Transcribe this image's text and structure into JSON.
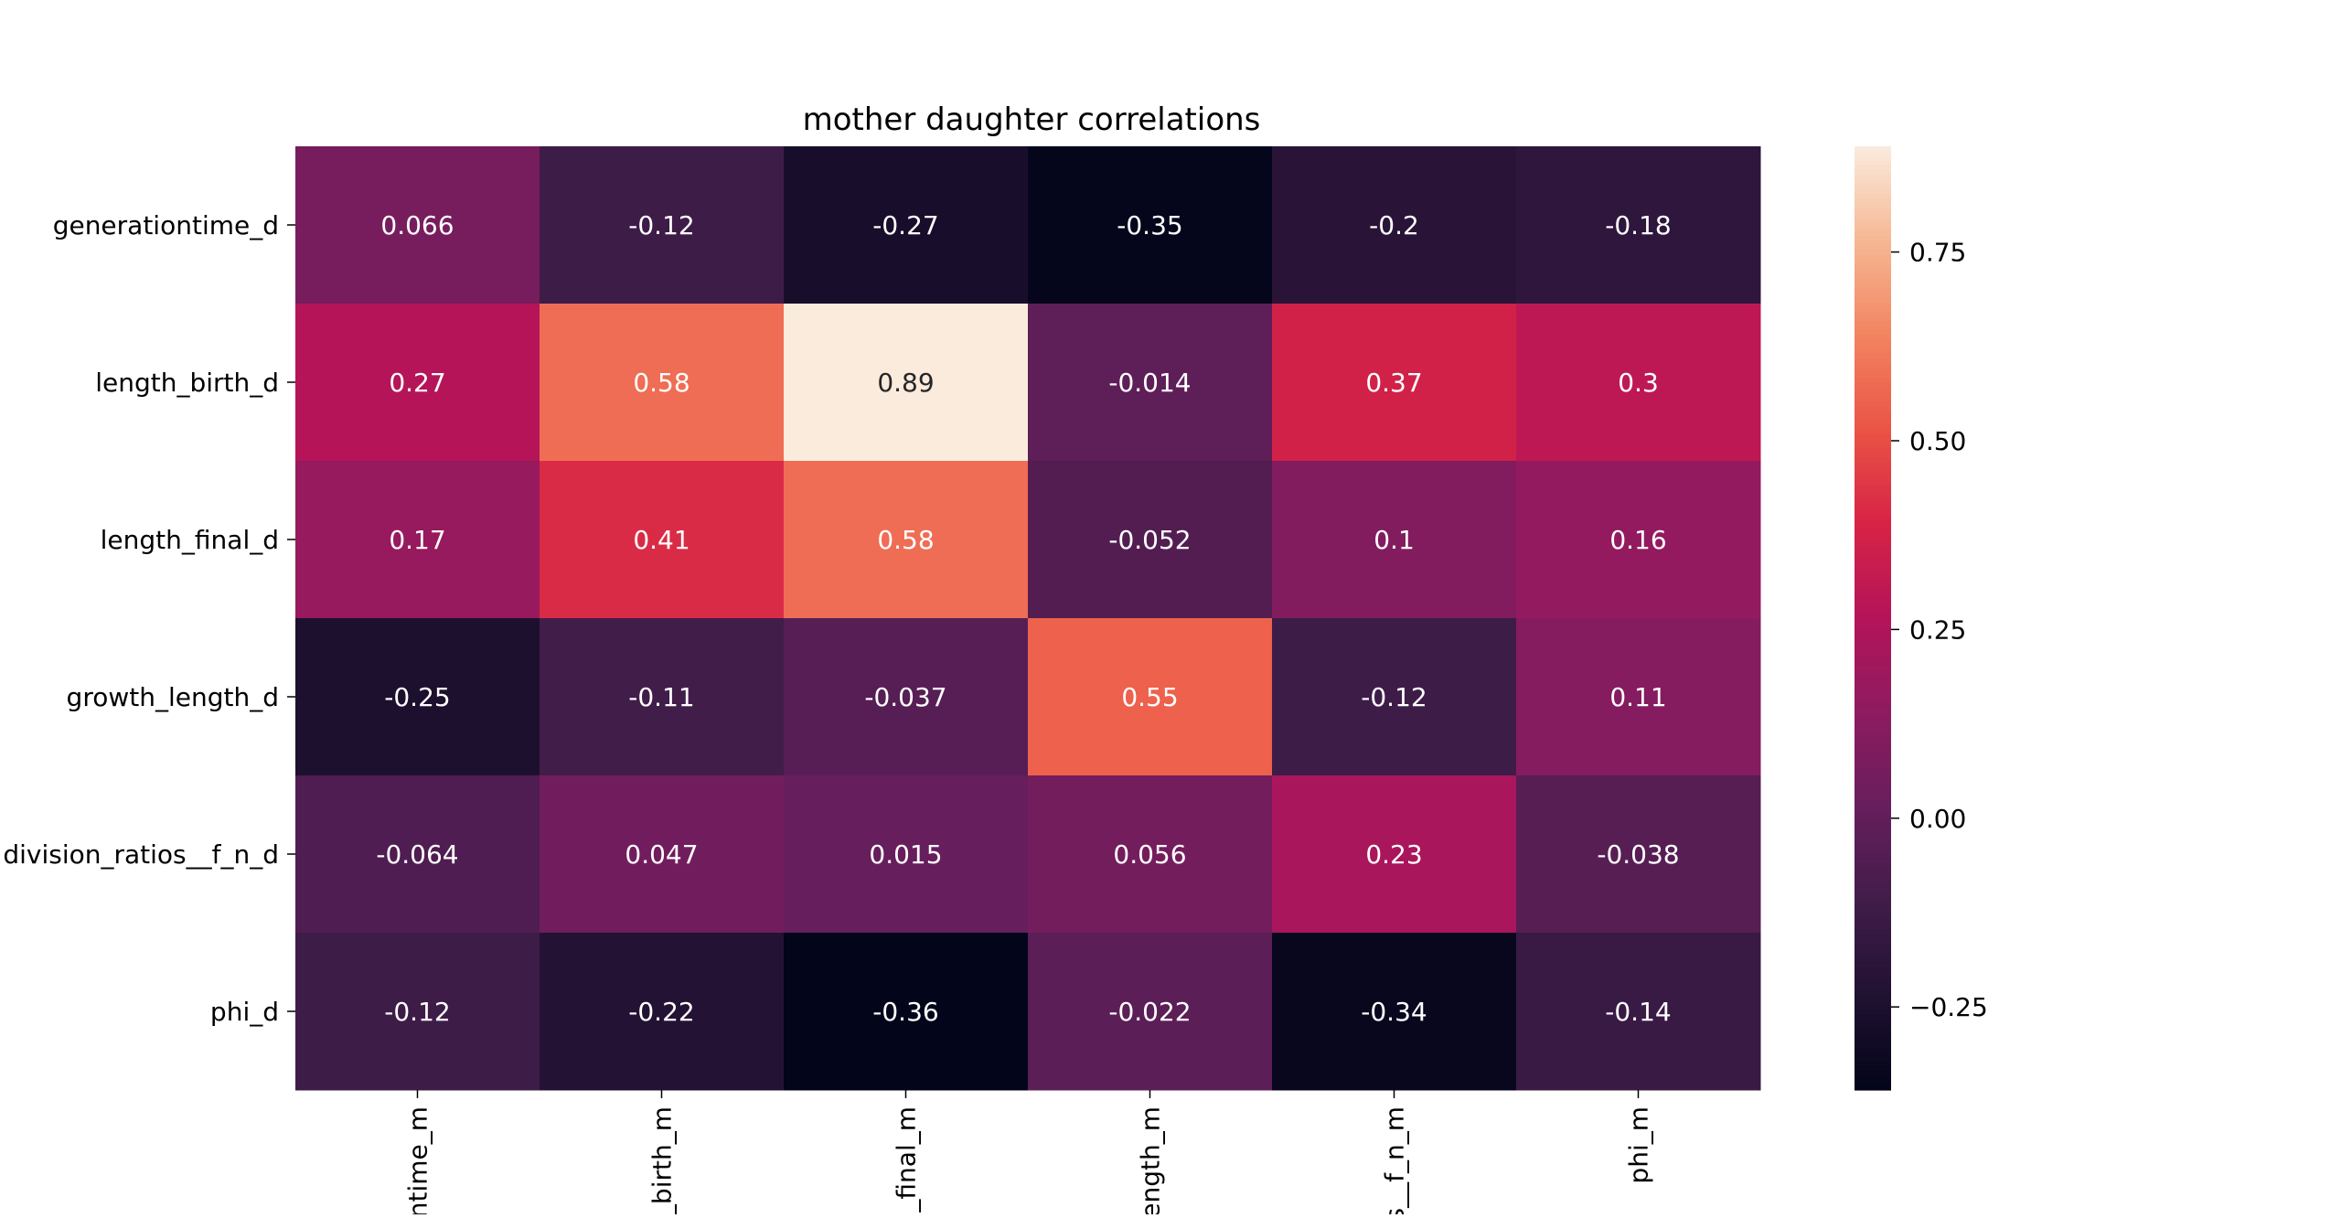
{
  "chart_data": {
    "type": "heatmap",
    "title": "mother daughter correlations",
    "rows": [
      "generationtime_d",
      "length_birth_d",
      "length_final_d",
      "growth_length_d",
      "division_ratios__f_n_d",
      "phi_d"
    ],
    "columns": [
      "generationtime_m",
      "length_birth_m",
      "length_final_m",
      "growth_length_m",
      "division_ratios__f_n_m",
      "phi_m"
    ],
    "column_labels_visible": [
      "ntime_m",
      "_birth_m",
      "n_final_m",
      "ength_m",
      "s__f_n_m",
      "phi_m"
    ],
    "values": [
      [
        0.066,
        -0.12,
        -0.27,
        -0.35,
        -0.2,
        -0.18
      ],
      [
        0.27,
        0.58,
        0.89,
        -0.014,
        0.37,
        0.3
      ],
      [
        0.17,
        0.41,
        0.58,
        -0.052,
        0.1,
        0.16
      ],
      [
        -0.25,
        -0.11,
        -0.037,
        0.55,
        -0.12,
        0.11
      ],
      [
        -0.064,
        0.047,
        0.015,
        0.056,
        0.23,
        -0.038
      ],
      [
        -0.12,
        -0.22,
        -0.36,
        -0.022,
        -0.34,
        -0.14
      ]
    ],
    "value_labels": [
      [
        "0.066",
        "-0.12",
        "-0.27",
        "-0.35",
        "-0.2",
        "-0.18"
      ],
      [
        "0.27",
        "0.58",
        "0.89",
        "-0.014",
        "0.37",
        "0.3"
      ],
      [
        "0.17",
        "0.41",
        "0.58",
        "-0.052",
        "0.1",
        "0.16"
      ],
      [
        "-0.25",
        "-0.11",
        "-0.037",
        "0.55",
        "-0.12",
        "0.11"
      ],
      [
        "-0.064",
        "0.047",
        "0.015",
        "0.056",
        "0.23",
        "-0.038"
      ],
      [
        "-0.12",
        "-0.22",
        "-0.36",
        "-0.022",
        "-0.34",
        "-0.14"
      ]
    ],
    "colormap": "rocket",
    "vmin": -0.36,
    "vmax": 0.89,
    "colorbar": {
      "ticks": [
        0.75,
        0.5,
        0.25,
        0.0,
        -0.25
      ],
      "tick_labels": [
        "0.75",
        "0.50",
        "0.25",
        "0.00",
        "−0.25"
      ],
      "placement": "right"
    },
    "grid": false,
    "xlabel": "",
    "ylabel": ""
  }
}
